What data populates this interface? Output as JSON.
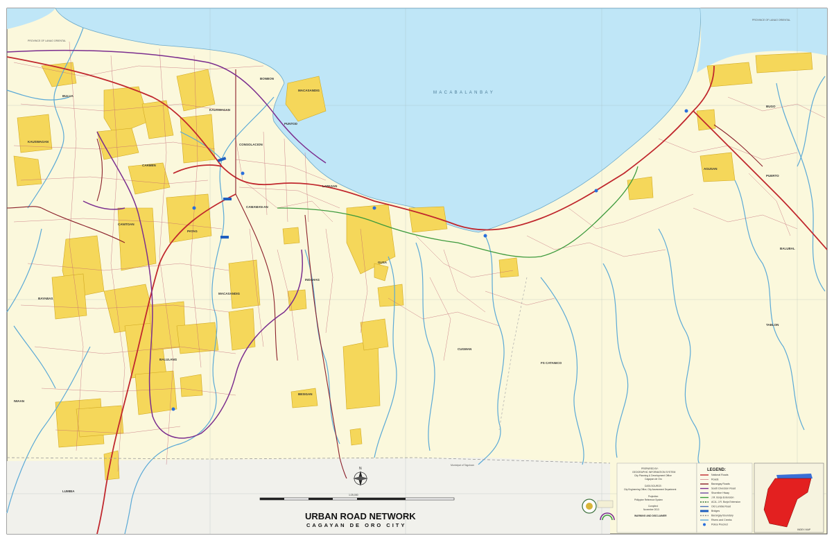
{
  "map": {
    "title": "URBAN ROAD NETWORK",
    "subtitle": "CAGAYAN DE ORO CITY",
    "bay_label": "M A C A B A L A N   B A Y",
    "province_left": "PROVINCE OF LANAO ORIENTAL",
    "province_right": "PROVINCE OF LANAO ORIENTAL",
    "municipal_boundary": "Municipal of Tagoloan",
    "scale_text": "1:25,000",
    "compass_label": "N",
    "colors": {
      "water": "#bfe6f7",
      "land": "#fbf8dc",
      "urban": "#f5d75a",
      "national_road": "#c0272d",
      "barangay_road": "#8a1f2a",
      "south_diversion": "#7b2d8e",
      "river": "#5aa9d6",
      "green_road": "#3c9a3c"
    }
  },
  "barangays": [
    {
      "name": "BULUA"
    },
    {
      "name": "KAUSWAGAN"
    },
    {
      "name": "BONBON"
    },
    {
      "name": "MACASANDIG"
    },
    {
      "name": "PUNTOD"
    },
    {
      "name": "CONSOLACION"
    },
    {
      "name": "CARMEN"
    },
    {
      "name": "CANITOAN"
    },
    {
      "name": "PATAG"
    },
    {
      "name": "LAPASAN"
    },
    {
      "name": "GUSA"
    },
    {
      "name": "CUGMAN"
    },
    {
      "name": "AGUSAN"
    },
    {
      "name": "PUERTO"
    },
    {
      "name": "BUGO"
    },
    {
      "name": "BALUBAL"
    },
    {
      "name": "TABLON"
    },
    {
      "name": "FS CATANICO"
    },
    {
      "name": "MACASANDIG"
    },
    {
      "name": "BALULANG"
    },
    {
      "name": "LUMBIA"
    },
    {
      "name": "INDAHAG"
    },
    {
      "name": "CAMAMAN-AN"
    },
    {
      "name": "IWAAN"
    },
    {
      "name": "BAYABAS"
    },
    {
      "name": "BESIGAN"
    }
  ],
  "legend": {
    "title": "LEGEND:",
    "items": [
      {
        "label": "National Roads",
        "color": "#c0272d",
        "style": "solid"
      },
      {
        "label": "Roads",
        "color": "#c06070",
        "style": "thin"
      },
      {
        "label": "Barangay Roads",
        "color": "#8a1f2a",
        "style": "solid"
      },
      {
        "label": "South Diversion Road",
        "color": "#7b2d8e",
        "style": "solid"
      },
      {
        "label": "Shoreline Hiway",
        "color": "#6f4aa3",
        "style": "solid"
      },
      {
        "label": "J.R. Borja Extension",
        "color": "#3c9a3c",
        "style": "solid"
      },
      {
        "label": "ACA- J.R. Borja Extension",
        "color": "#2f6f2f",
        "style": "dash"
      },
      {
        "label": "Old Lumbia Road",
        "color": "#4a74b8",
        "style": "solid"
      },
      {
        "label": "Bridges",
        "color": "#1f5fbf",
        "style": "block"
      },
      {
        "label": "Barangay Boundary",
        "color": "#888888",
        "style": "dash"
      },
      {
        "label": "Rivers and Creeks",
        "color": "#5aa9d6",
        "style": "solid"
      },
      {
        "label": "Police Precinct",
        "color": "#2a6fdb",
        "style": "point"
      }
    ]
  },
  "credits": {
    "prepared_by": "PREPARED BY:",
    "office_1": "GEOGRAPHIC INFORMATION SYSTEM",
    "office_2": "City Planning & Development Office",
    "office_3": "Cagayan de Oro",
    "data_source": "DATA SOURCE:",
    "source_1": "City Engineering Office, City Assessment Department",
    "projection": "Projection:",
    "projection_value": "Philippine Reference System",
    "compiled": "Compiled:",
    "compiled_value": "November 2013",
    "warning": "WARNING AND DISCLAIMER"
  },
  "inset": {
    "label": "INDEX MAP",
    "highlight_color": "#e32020",
    "water_color": "#3a6fd6"
  }
}
